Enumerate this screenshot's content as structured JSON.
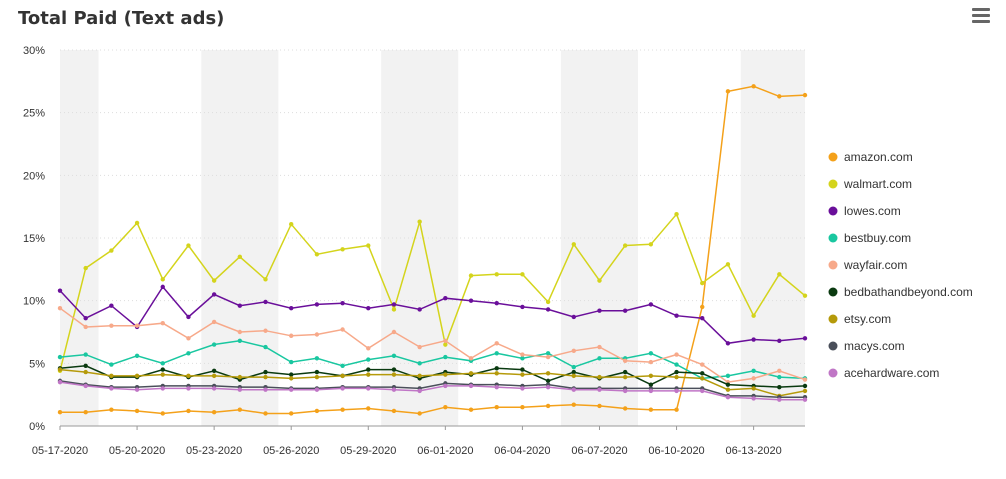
{
  "page": {
    "title": "Total Paid (Text ads)",
    "menu_icon": "hamburger-menu-icon"
  },
  "chart_data": {
    "type": "line",
    "title": "Total Paid (Text ads)",
    "xlabel": "",
    "ylabel": "",
    "ylim": [
      0,
      30
    ],
    "y_ticks": [
      "0%",
      "5%",
      "10%",
      "15%",
      "20%",
      "25%",
      "30%"
    ],
    "y_tick_values": [
      0,
      5,
      10,
      15,
      20,
      25,
      30
    ],
    "x": [
      "2020-05-17",
      "2020-05-18",
      "2020-05-19",
      "2020-05-20",
      "2020-05-21",
      "2020-05-22",
      "2020-05-23",
      "2020-05-24",
      "2020-05-25",
      "2020-05-26",
      "2020-05-27",
      "2020-05-28",
      "2020-05-29",
      "2020-05-30",
      "2020-05-31",
      "2020-06-01",
      "2020-06-02",
      "2020-06-03",
      "2020-06-04",
      "2020-06-05",
      "2020-06-06",
      "2020-06-07",
      "2020-06-08",
      "2020-06-09",
      "2020-06-10",
      "2020-06-11",
      "2020-06-12",
      "2020-06-13",
      "2020-06-14",
      "2020-06-15"
    ],
    "x_tick_labels": [
      "05-17-2020",
      "05-20-2020",
      "05-23-2020",
      "05-26-2020",
      "05-29-2020",
      "06-01-2020",
      "06-04-2020",
      "06-07-2020",
      "06-10-2020",
      "06-13-2020"
    ],
    "x_tick_indices": [
      0,
      3,
      6,
      9,
      12,
      15,
      18,
      21,
      24,
      27
    ],
    "weekend_bands": [
      [
        0,
        1
      ],
      [
        6,
        8
      ],
      [
        13,
        15
      ],
      [
        20,
        22
      ],
      [
        27,
        29
      ]
    ],
    "grid": true,
    "legend_position": "right",
    "series": [
      {
        "name": "amazon.com",
        "color": "#f4a11a",
        "values": [
          1.1,
          1.1,
          1.3,
          1.2,
          1.0,
          1.2,
          1.1,
          1.3,
          1.0,
          1.0,
          1.2,
          1.3,
          1.4,
          1.2,
          1.0,
          1.5,
          1.3,
          1.5,
          1.5,
          1.6,
          1.7,
          1.6,
          1.4,
          1.3,
          1.3,
          9.5,
          26.7,
          27.1,
          26.3,
          26.4
        ]
      },
      {
        "name": "walmart.com",
        "color": "#d4d41c",
        "values": [
          4.4,
          12.6,
          14.0,
          16.2,
          11.7,
          14.4,
          11.6,
          13.5,
          11.7,
          16.1,
          13.7,
          14.1,
          14.4,
          9.3,
          16.3,
          6.5,
          12.0,
          12.1,
          12.1,
          9.9,
          14.5,
          11.6,
          14.4,
          14.5,
          16.9,
          11.4,
          12.9,
          8.8,
          12.1,
          10.4
        ]
      },
      {
        "name": "lowes.com",
        "color": "#6a0f9a",
        "values": [
          10.8,
          8.6,
          9.6,
          7.9,
          11.1,
          8.7,
          10.5,
          9.6,
          9.9,
          9.4,
          9.7,
          9.8,
          9.4,
          9.7,
          9.3,
          10.2,
          10.0,
          9.8,
          9.5,
          9.3,
          8.7,
          9.2,
          9.2,
          9.7,
          8.8,
          8.6,
          6.6,
          6.9,
          6.8,
          7.0
        ]
      },
      {
        "name": "bestbuy.com",
        "color": "#19c7a0",
        "values": [
          5.5,
          5.7,
          4.9,
          5.6,
          5.0,
          5.8,
          6.5,
          6.8,
          6.3,
          5.1,
          5.4,
          4.8,
          5.3,
          5.6,
          5.0,
          5.5,
          5.2,
          5.8,
          5.4,
          5.8,
          4.7,
          5.4,
          5.4,
          5.8,
          4.9,
          3.8,
          4.0,
          4.4,
          3.9,
          3.8
        ]
      },
      {
        "name": "wayfair.com",
        "color": "#f7a98a",
        "values": [
          9.4,
          7.9,
          8.0,
          8.0,
          8.2,
          7.0,
          8.3,
          7.5,
          7.6,
          7.2,
          7.3,
          7.7,
          6.2,
          7.5,
          6.3,
          6.8,
          5.4,
          6.6,
          5.7,
          5.5,
          6.0,
          6.3,
          5.2,
          5.1,
          5.7,
          4.9,
          3.5,
          3.8,
          4.4,
          3.7
        ]
      },
      {
        "name": "bedbathandbeyond.com",
        "color": "#0a3a10",
        "values": [
          4.6,
          4.8,
          3.9,
          3.9,
          4.5,
          3.9,
          4.4,
          3.7,
          4.3,
          4.1,
          4.3,
          4.0,
          4.5,
          4.5,
          3.8,
          4.3,
          4.1,
          4.6,
          4.5,
          3.6,
          4.3,
          3.8,
          4.3,
          3.3,
          4.3,
          4.2,
          3.3,
          3.2,
          3.1,
          3.2
        ]
      },
      {
        "name": "etsy.com",
        "color": "#b59a0a",
        "values": [
          4.5,
          4.3,
          4.0,
          4.0,
          4.1,
          4.0,
          4.0,
          3.9,
          3.9,
          3.8,
          3.9,
          4.0,
          4.1,
          4.1,
          4.0,
          4.1,
          4.2,
          4.2,
          4.1,
          4.2,
          4.0,
          3.9,
          3.9,
          4.0,
          3.9,
          3.8,
          2.9,
          3.0,
          2.4,
          2.8
        ]
      },
      {
        "name": "macys.com",
        "color": "#4a4f5a",
        "values": [
          3.6,
          3.3,
          3.1,
          3.1,
          3.2,
          3.2,
          3.2,
          3.1,
          3.1,
          3.0,
          3.0,
          3.1,
          3.1,
          3.1,
          3.0,
          3.4,
          3.3,
          3.3,
          3.2,
          3.3,
          3.0,
          3.0,
          3.0,
          3.0,
          3.0,
          3.0,
          2.4,
          2.4,
          2.3,
          2.3
        ]
      },
      {
        "name": "acehardware.com",
        "color": "#c076c6",
        "values": [
          3.5,
          3.2,
          3.0,
          2.9,
          3.0,
          3.0,
          3.0,
          2.9,
          2.9,
          2.9,
          2.9,
          3.0,
          3.0,
          2.9,
          2.8,
          3.2,
          3.2,
          3.1,
          3.0,
          3.1,
          2.9,
          2.9,
          2.8,
          2.8,
          2.8,
          2.8,
          2.3,
          2.2,
          2.1,
          2.1
        ]
      }
    ]
  }
}
